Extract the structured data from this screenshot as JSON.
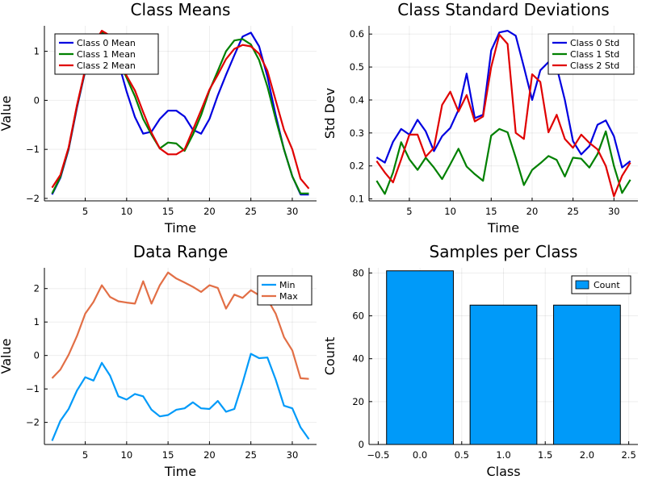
{
  "chart_data": [
    {
      "type": "line",
      "title": "Class Means",
      "xlabel": "Time",
      "ylabel": "Value",
      "xlim": [
        0.07,
        32.93
      ],
      "ylim": [
        -2.05,
        1.52
      ],
      "xticks": [
        5,
        10,
        15,
        20,
        25,
        30
      ],
      "xtick_labels": [
        "5",
        "10",
        "15",
        "20",
        "25",
        "30"
      ],
      "yticks": [
        -2,
        -1,
        0,
        1
      ],
      "ytick_labels": [
        "−2",
        "−1",
        "0",
        "1"
      ],
      "grid": true,
      "legend_position": "top-left",
      "x": [
        1,
        2,
        3,
        4,
        5,
        6,
        7,
        8,
        9,
        10,
        11,
        12,
        13,
        14,
        15,
        16,
        17,
        18,
        19,
        20,
        21,
        22,
        23,
        24,
        25,
        26,
        27,
        28,
        29,
        30,
        31,
        32
      ],
      "series": [
        {
          "name": "Class 0 Mean",
          "color": "#0000e0",
          "values": [
            -1.92,
            -1.58,
            -1.0,
            -0.15,
            0.6,
            1.1,
            1.38,
            1.28,
            0.78,
            0.18,
            -0.34,
            -0.68,
            -0.64,
            -0.38,
            -0.21,
            -0.21,
            -0.33,
            -0.6,
            -0.68,
            -0.38,
            0.1,
            0.52,
            0.92,
            1.3,
            1.38,
            1.1,
            0.48,
            -0.3,
            -1.0,
            -1.55,
            -1.92,
            -1.92
          ]
        },
        {
          "name": "Class 1 Mean",
          "color": "#008000",
          "values": [
            -1.9,
            -1.56,
            -0.98,
            -0.12,
            0.62,
            1.12,
            1.4,
            1.3,
            0.84,
            0.46,
            0.08,
            -0.38,
            -0.7,
            -0.98,
            -0.86,
            -0.88,
            -1.03,
            -0.7,
            -0.3,
            0.2,
            0.6,
            1.0,
            1.22,
            1.25,
            1.14,
            0.82,
            0.28,
            -0.38,
            -1.0,
            -1.55,
            -1.9,
            -1.9
          ]
        },
        {
          "name": "Class 2 Mean",
          "color": "#e00000",
          "values": [
            -1.78,
            -1.52,
            -0.96,
            -0.1,
            0.64,
            1.14,
            1.42,
            1.32,
            0.88,
            0.5,
            0.2,
            -0.24,
            -0.66,
            -0.98,
            -1.1,
            -1.1,
            -1.0,
            -0.6,
            -0.2,
            0.22,
            0.52,
            0.84,
            1.05,
            1.13,
            1.1,
            0.95,
            0.6,
            0.0,
            -0.6,
            -1.0,
            -1.6,
            -1.8
          ]
        }
      ]
    },
    {
      "type": "line",
      "title": "Class Standard Deviations",
      "xlabel": "Time",
      "ylabel": "Std Dev",
      "xlim": [
        0.07,
        32.93
      ],
      "ylim": [
        0.094,
        0.625
      ],
      "xticks": [
        5,
        10,
        15,
        20,
        25,
        30
      ],
      "xtick_labels": [
        "5",
        "10",
        "15",
        "20",
        "25",
        "30"
      ],
      "yticks": [
        0.1,
        0.2,
        0.3,
        0.4,
        0.5,
        0.6
      ],
      "ytick_labels": [
        "0.1",
        "0.2",
        "0.3",
        "0.4",
        "0.5",
        "0.6"
      ],
      "grid": true,
      "legend_position": "top-right",
      "x": [
        1,
        2,
        3,
        4,
        5,
        6,
        7,
        8,
        9,
        10,
        11,
        12,
        13,
        14,
        15,
        16,
        17,
        18,
        19,
        20,
        21,
        22,
        23,
        24,
        25,
        26,
        27,
        28,
        29,
        30,
        31,
        32
      ],
      "series": [
        {
          "name": "Class 0 Std",
          "color": "#0000e0",
          "values": [
            0.226,
            0.21,
            0.273,
            0.312,
            0.295,
            0.34,
            0.305,
            0.245,
            0.29,
            0.315,
            0.37,
            0.48,
            0.345,
            0.355,
            0.55,
            0.605,
            0.61,
            0.595,
            0.5,
            0.4,
            0.49,
            0.515,
            0.5,
            0.4,
            0.275,
            0.235,
            0.26,
            0.325,
            0.338,
            0.29,
            0.195,
            0.215
          ]
        },
        {
          "name": "Class 1 Std",
          "color": "#008000",
          "values": [
            0.155,
            0.115,
            0.18,
            0.272,
            0.22,
            0.188,
            0.225,
            0.195,
            0.16,
            0.205,
            0.252,
            0.198,
            0.175,
            0.155,
            0.292,
            0.312,
            0.302,
            0.225,
            0.142,
            0.188,
            0.208,
            0.23,
            0.218,
            0.168,
            0.225,
            0.222,
            0.195,
            0.236,
            0.305,
            0.2,
            0.118,
            0.158
          ]
        },
        {
          "name": "Class 2 Std",
          "color": "#e00000",
          "values": [
            0.215,
            0.18,
            0.15,
            0.22,
            0.295,
            0.295,
            0.228,
            0.255,
            0.385,
            0.425,
            0.365,
            0.415,
            0.335,
            0.35,
            0.5,
            0.598,
            0.57,
            0.3,
            0.282,
            0.478,
            0.455,
            0.302,
            0.355,
            0.282,
            0.255,
            0.295,
            0.27,
            0.25,
            0.2,
            0.108,
            0.17,
            0.21
          ]
        }
      ]
    },
    {
      "type": "line",
      "title": "Data Range",
      "xlabel": "Time",
      "ylabel": "Value",
      "xlim": [
        0.07,
        32.93
      ],
      "ylim": [
        -2.66,
        2.62
      ],
      "xticks": [
        5,
        10,
        15,
        20,
        25,
        30
      ],
      "xtick_labels": [
        "5",
        "10",
        "15",
        "20",
        "25",
        "30"
      ],
      "yticks": [
        -2,
        -1,
        0,
        1,
        2
      ],
      "ytick_labels": [
        "−2",
        "−1",
        "0",
        "1",
        "2"
      ],
      "grid": true,
      "legend_position": "top-right",
      "x": [
        1,
        2,
        3,
        4,
        5,
        6,
        7,
        8,
        9,
        10,
        11,
        12,
        13,
        14,
        15,
        16,
        17,
        18,
        19,
        20,
        21,
        22,
        23,
        24,
        25,
        26,
        27,
        28,
        29,
        30,
        31,
        32
      ],
      "series": [
        {
          "name": "Min",
          "color": "#009af9",
          "values": [
            -2.55,
            -1.95,
            -1.6,
            -1.05,
            -0.65,
            -0.75,
            -0.22,
            -0.6,
            -1.22,
            -1.32,
            -1.15,
            -1.22,
            -1.62,
            -1.82,
            -1.78,
            -1.62,
            -1.58,
            -1.4,
            -1.58,
            -1.6,
            -1.36,
            -1.68,
            -1.6,
            -0.82,
            0.05,
            -0.08,
            -0.06,
            -0.72,
            -1.5,
            -1.58,
            -2.15,
            -2.5
          ]
        },
        {
          "name": "Max",
          "color": "#e26f46",
          "values": [
            -0.68,
            -0.42,
            0.02,
            0.58,
            1.25,
            1.6,
            2.1,
            1.75,
            1.62,
            1.58,
            1.55,
            2.22,
            1.55,
            2.1,
            2.48,
            2.3,
            2.18,
            2.05,
            1.9,
            2.1,
            2.02,
            1.4,
            1.82,
            1.72,
            1.95,
            1.8,
            1.68,
            1.25,
            0.55,
            0.15,
            -0.68,
            -0.7
          ]
        }
      ]
    },
    {
      "type": "bar",
      "title": "Samples per Class",
      "xlabel": "Class",
      "ylabel": "Count",
      "xlim": [
        -0.61,
        2.61
      ],
      "ylim": [
        0,
        82.4
      ],
      "xticks": [
        -0.5,
        0,
        0.5,
        1,
        1.5,
        2,
        2.5
      ],
      "xtick_labels": [
        "−0.5",
        "0.0",
        "0.5",
        "1.0",
        "1.5",
        "2.0",
        "2.5"
      ],
      "yticks": [
        0,
        20,
        40,
        60,
        80
      ],
      "ytick_labels": [
        "0",
        "20",
        "40",
        "60",
        "80"
      ],
      "grid": true,
      "legend_position": "top-right",
      "categories": [
        0,
        1,
        2
      ],
      "bar_width": 0.8,
      "series": [
        {
          "name": "Count",
          "color": "#009af9",
          "values": [
            81,
            65,
            65
          ]
        }
      ]
    }
  ]
}
